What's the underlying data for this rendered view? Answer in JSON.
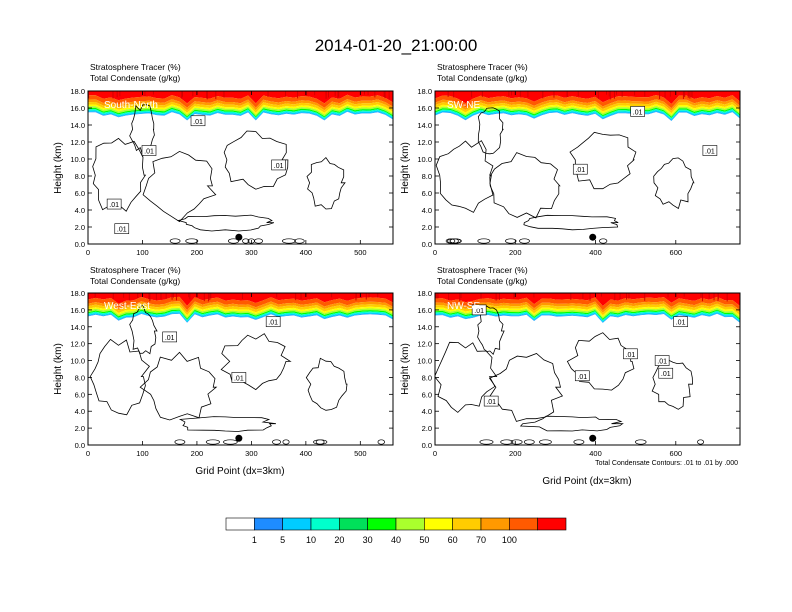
{
  "title": "2014-01-20_21:00:00",
  "chart_data": [
    {
      "type": "heatmap",
      "panel_label": "South-North",
      "variable_lines": [
        "Stratosphere Tracer   (%)",
        "Total Condensate   (g/kg)"
      ],
      "ylabel": "Height (km)",
      "xlabel": "",
      "xlim": [
        0,
        560
      ],
      "ylim": [
        0,
        18
      ],
      "xticks": [
        0,
        100,
        200,
        300,
        400,
        500
      ],
      "yticks": [
        0.0,
        2.0,
        4.0,
        6.0,
        8.0,
        10.0,
        12.0,
        14.0,
        16.0,
        18.0
      ],
      "ytick_labels": [
        "0.0",
        "2.0",
        "4.0",
        "6.0",
        "8.0",
        "10.0",
        "12.0",
        "14.0",
        "16.0",
        "18.0"
      ],
      "marker_x": 277,
      "tracer_base_km": 15.3,
      "contour_labels": [
        {
          "text": ".01",
          "x": 202,
          "y": 14.5
        },
        {
          "text": ".01",
          "x": 112,
          "y": 11.0
        },
        {
          "text": ".01",
          "x": 350,
          "y": 9.3
        },
        {
          "text": ".01",
          "x": 48,
          "y": 4.7
        },
        {
          "text": ".01",
          "x": 62,
          "y": 1.8
        }
      ]
    },
    {
      "type": "heatmap",
      "panel_label": "SW-NE",
      "variable_lines": [
        "Stratosphere Tracer   (%)",
        "Total Condensate   (g/kg)"
      ],
      "ylabel": "Height (km)",
      "xlabel": "",
      "xlim": [
        0,
        760
      ],
      "ylim": [
        0,
        18
      ],
      "xticks": [
        0,
        200,
        400,
        600
      ],
      "yticks": [
        0.0,
        2.0,
        4.0,
        6.0,
        8.0,
        10.0,
        12.0,
        14.0,
        16.0,
        18.0
      ],
      "ytick_labels": [
        "0.0",
        "2.0",
        "4.0",
        "6.0",
        "8.0",
        "10.0",
        "12.0",
        "14.0",
        "16.0",
        "18.0"
      ],
      "marker_x": 393,
      "tracer_base_km": 15.3,
      "contour_labels": [
        {
          "text": ".01",
          "x": 505,
          "y": 15.6
        },
        {
          "text": ".01",
          "x": 362,
          "y": 8.8
        },
        {
          "text": ".01",
          "x": 685,
          "y": 11.0
        }
      ]
    },
    {
      "type": "heatmap",
      "panel_label": "West-East",
      "variable_lines": [
        "Stratosphere Tracer   (%)",
        "Total Condensate   (g/kg)"
      ],
      "ylabel": "Height (km)",
      "xlabel": "Grid Point (dx=3km)",
      "xlim": [
        0,
        560
      ],
      "ylim": [
        0,
        18
      ],
      "xticks": [
        0,
        100,
        200,
        300,
        400,
        500
      ],
      "yticks": [
        0.0,
        2.0,
        4.0,
        6.0,
        8.0,
        10.0,
        12.0,
        14.0,
        16.0,
        18.0
      ],
      "ytick_labels": [
        "0.0",
        "2.0",
        "4.0",
        "6.0",
        "8.0",
        "10.0",
        "12.0",
        "14.0",
        "16.0",
        "18.0"
      ],
      "marker_x": 277,
      "tracer_base_km": 15.3,
      "contour_labels": [
        {
          "text": ".01",
          "x": 340,
          "y": 14.6
        },
        {
          "text": ".01",
          "x": 150,
          "y": 12.8
        },
        {
          "text": ".01",
          "x": 277,
          "y": 8.0
        }
      ]
    },
    {
      "type": "heatmap",
      "panel_label": "NW-SE",
      "variable_lines": [
        "Stratosphere Tracer   (%)",
        "Total Condensate   (g/kg)"
      ],
      "ylabel": "Height (km)",
      "xlabel": "Grid Point (dx=3km)",
      "xlim": [
        0,
        760
      ],
      "ylim": [
        0,
        18
      ],
      "xticks": [
        0,
        200,
        400,
        600
      ],
      "yticks": [
        0.0,
        2.0,
        4.0,
        6.0,
        8.0,
        10.0,
        12.0,
        14.0,
        16.0,
        18.0
      ],
      "ytick_labels": [
        "0.0",
        "2.0",
        "4.0",
        "6.0",
        "8.0",
        "10.0",
        "12.0",
        "14.0",
        "16.0",
        "18.0"
      ],
      "marker_x": 393,
      "tracer_base_km": 15.3,
      "contour_info": "Total Condensate Contours: .01 to .01 by .000",
      "contour_labels": [
        {
          "text": ".01",
          "x": 110,
          "y": 16.0
        },
        {
          "text": ".01",
          "x": 612,
          "y": 14.6
        },
        {
          "text": ".01",
          "x": 487,
          "y": 10.8
        },
        {
          "text": ".01",
          "x": 566,
          "y": 10.0
        },
        {
          "text": ".01",
          "x": 575,
          "y": 8.5
        },
        {
          "text": ".01",
          "x": 367,
          "y": 8.2
        },
        {
          "text": ".01",
          "x": 140,
          "y": 5.2
        }
      ]
    }
  ],
  "colorbar": {
    "levels": [
      "1",
      "5",
      "10",
      "20",
      "30",
      "40",
      "50",
      "60",
      "70",
      "100"
    ],
    "colors": [
      "#ffffff",
      "#1e8cff",
      "#00ccff",
      "#00ffcc",
      "#00e05a",
      "#00ff00",
      "#aaff2d",
      "#ffff00",
      "#ffcc00",
      "#ff9900",
      "#ff5a00",
      "#ff0000"
    ]
  }
}
